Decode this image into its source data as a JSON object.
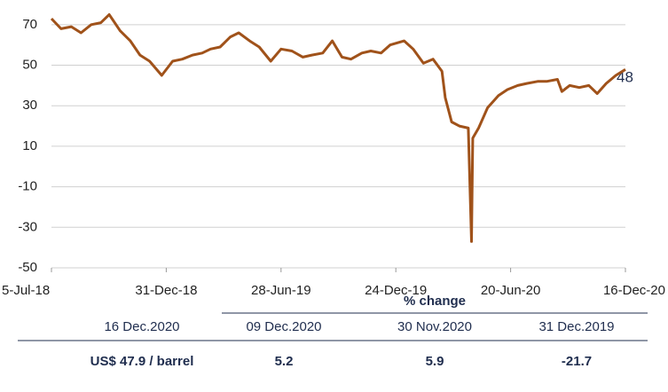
{
  "chart_data": {
    "type": "line",
    "color": "#a0521a",
    "x": [
      "2018-07-05",
      "2018-07-20",
      "2018-08-05",
      "2018-08-20",
      "2018-09-05",
      "2018-09-20",
      "2018-10-03",
      "2018-10-20",
      "2018-11-05",
      "2018-11-20",
      "2018-12-05",
      "2018-12-24",
      "2019-01-10",
      "2019-01-25",
      "2019-02-10",
      "2019-02-25",
      "2019-03-10",
      "2019-03-25",
      "2019-04-10",
      "2019-04-23",
      "2019-05-10",
      "2019-05-25",
      "2019-06-12",
      "2019-06-28",
      "2019-07-15",
      "2019-08-01",
      "2019-08-15",
      "2019-09-01",
      "2019-09-16",
      "2019-10-01",
      "2019-10-15",
      "2019-11-01",
      "2019-11-15",
      "2019-12-01",
      "2019-12-15",
      "2020-01-06",
      "2020-01-20",
      "2020-02-05",
      "2020-02-20",
      "2020-03-05",
      "2020-03-10",
      "2020-03-20",
      "2020-04-01",
      "2020-04-15",
      "2020-04-20",
      "2020-04-22",
      "2020-05-01",
      "2020-05-15",
      "2020-06-01",
      "2020-06-15",
      "2020-07-01",
      "2020-07-15",
      "2020-08-01",
      "2020-08-15",
      "2020-09-01",
      "2020-09-08",
      "2020-09-20",
      "2020-10-05",
      "2020-10-20",
      "2020-11-02",
      "2020-11-16",
      "2020-12-01",
      "2020-12-16"
    ],
    "values": [
      73,
      68,
      69,
      66,
      70,
      71,
      75,
      67,
      62,
      55,
      52,
      45,
      52,
      53,
      55,
      56,
      58,
      59,
      64,
      66,
      62,
      59,
      52,
      58,
      57,
      54,
      55,
      56,
      62,
      54,
      53,
      56,
      57,
      56,
      60,
      62,
      58,
      51,
      53,
      47,
      34,
      22,
      20,
      19,
      -37,
      14,
      19,
      29,
      35,
      38,
      40,
      41,
      42,
      42,
      43,
      37,
      40,
      39,
      40,
      36,
      41,
      45,
      47.9
    ],
    "xlim": [
      "2018-07-05",
      "2020-12-16"
    ],
    "xticks": [
      {
        "value": "2018-07-05",
        "label": "5-Jul-18"
      },
      {
        "value": "2018-12-31",
        "label": "31-Dec-18"
      },
      {
        "value": "2019-06-28",
        "label": "28-Jun-19"
      },
      {
        "value": "2019-12-24",
        "label": "24-Dec-19"
      },
      {
        "value": "2020-06-20",
        "label": "20-Jun-20"
      },
      {
        "value": "2020-12-16",
        "label": "16-Dec-20"
      }
    ],
    "ylim": [
      -50,
      80
    ],
    "yticks": [
      -50,
      -30,
      -10,
      10,
      30,
      50,
      70
    ],
    "grid": true,
    "annotation": "48"
  },
  "table": {
    "header": "% change",
    "columns": [
      "16 Dec.2020",
      "09 Dec.2020",
      "30 Nov.2020",
      "31 Dec.2019"
    ],
    "row": [
      "US$ 47.9 / barrel",
      5.2,
      5.9,
      -21.7
    ]
  }
}
